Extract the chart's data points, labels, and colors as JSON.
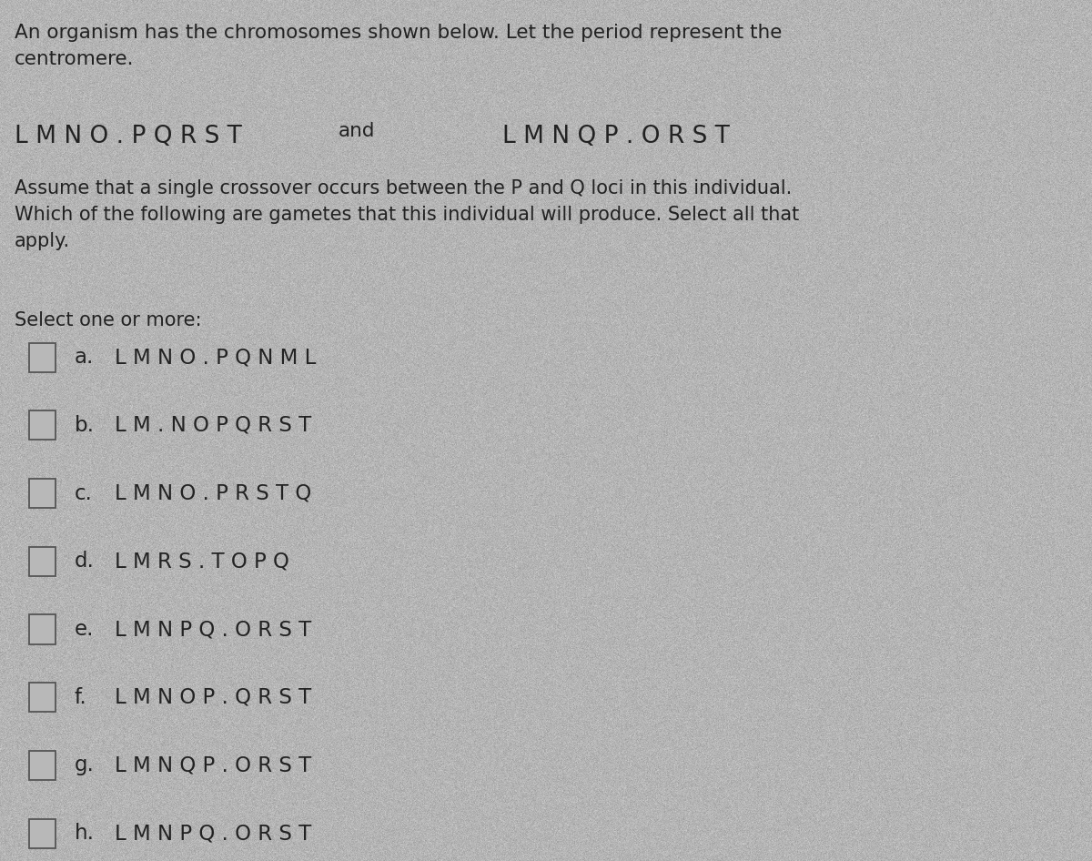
{
  "background_color": "#c0c0c0",
  "title_text": "An organism has the chromosomes shown below. Let the period represent the\ncentromere.",
  "chromosomes_line": "L M N O . P Q R S T",
  "and_text": "and",
  "chromosomes_line2": "L M N Q P . O R S T",
  "body_text": "Assume that a single crossover occurs between the P and Q loci in this individual.\nWhich of the following are gametes that this individual will produce. Select all that\napply.",
  "select_text": "Select one or more:",
  "options": [
    {
      "label": "a.",
      "text": "L M N O . P Q N M L"
    },
    {
      "label": "b.",
      "text": "L M . N O P Q R S T"
    },
    {
      "label": "c.",
      "text": "L M N O . P R S T Q"
    },
    {
      "label": "d.",
      "text": "L M R S . T O P Q"
    },
    {
      "label": "e.",
      "text": "L M N P Q . O R S T"
    },
    {
      "label": "f.",
      "text": "L M N O P . Q R S T"
    },
    {
      "label": "g.",
      "text": "L M N Q P . O R S T"
    },
    {
      "label": "h.",
      "text": "L M N P Q . O R S T"
    }
  ],
  "title_fontsize": 15.5,
  "chrom_fontsize": 19,
  "body_fontsize": 15.0,
  "select_fontsize": 15.0,
  "option_fontsize": 16.5,
  "text_color": "#222222",
  "noise_alpha": 0.18,
  "noise_seed": 42
}
